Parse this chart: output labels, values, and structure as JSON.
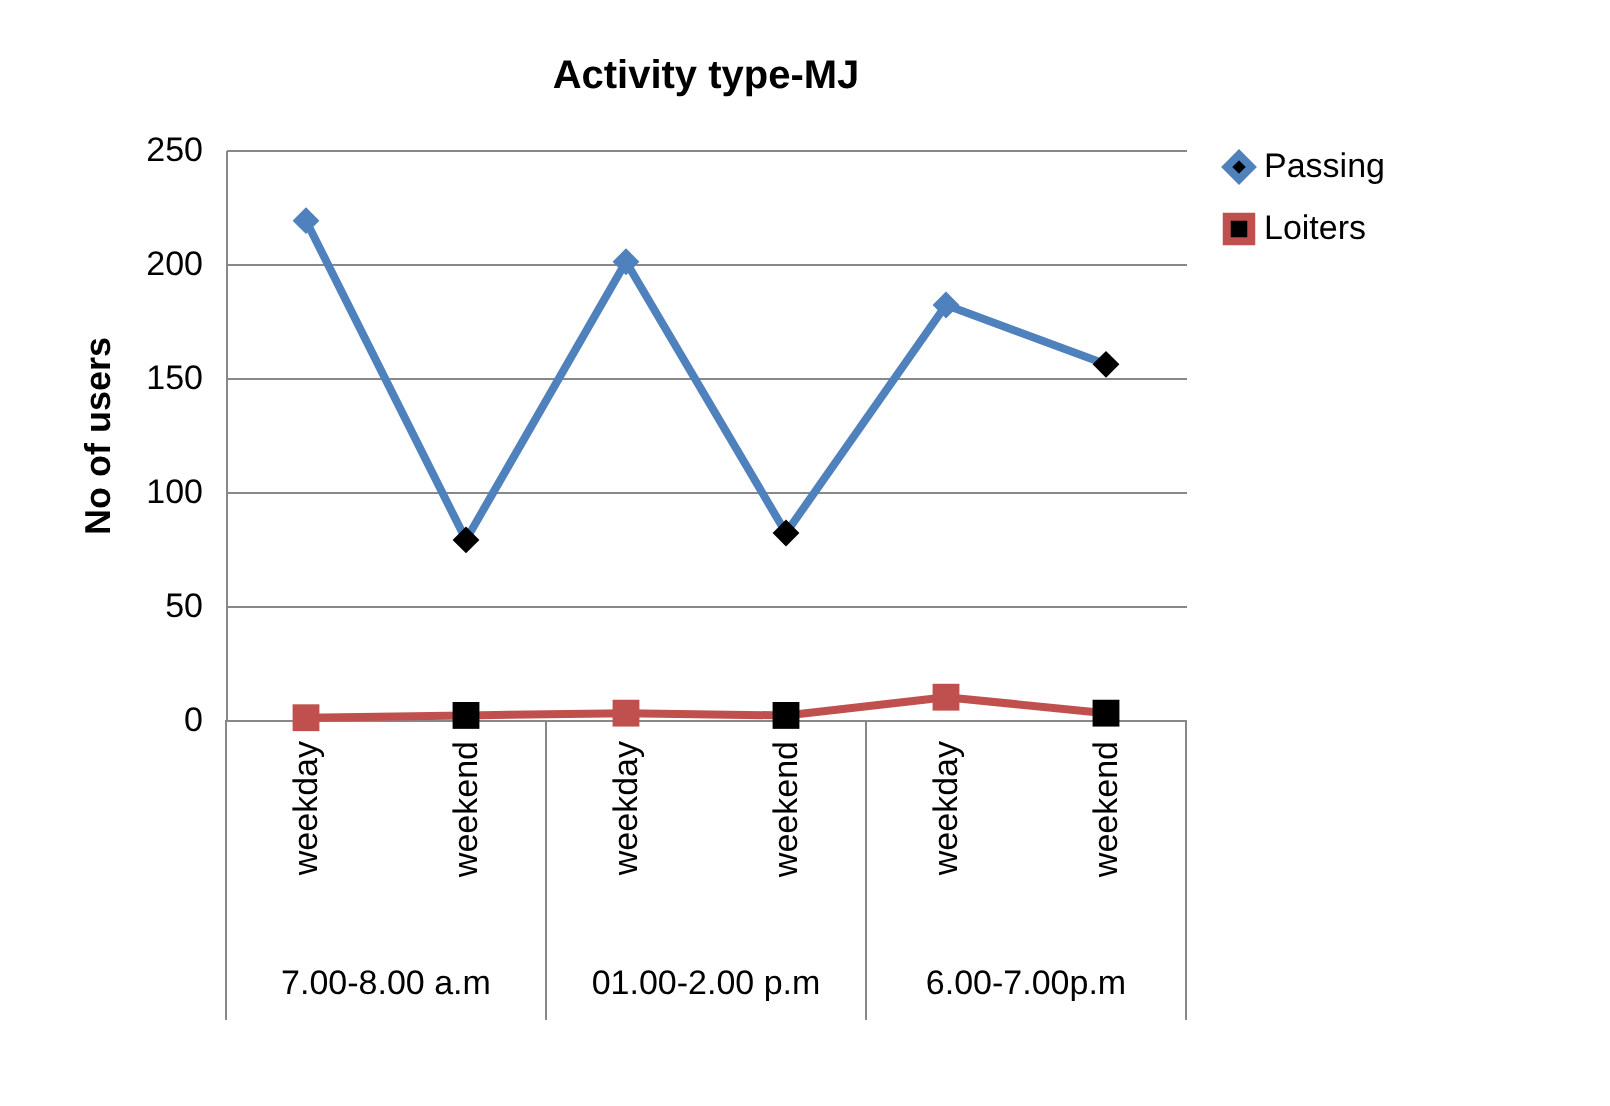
{
  "chart_data": {
    "type": "line",
    "title": "Activity type-MJ",
    "ylabel": "No of users",
    "categories": [
      "weekday",
      "weekend",
      "weekday",
      "weekend",
      "weekday",
      "weekend"
    ],
    "annotations": [
      "7.00-8.00 a.m",
      "01.00-2.00 p.m",
      "6.00-7.00p.m"
    ],
    "series": [
      {
        "name": "Passing",
        "color": "#4f81bd",
        "marker": "diamond",
        "values": [
          219,
          79,
          201,
          82,
          182,
          156
        ],
        "colors": [
          "#4f81bd",
          "#000000",
          "#4f81bd",
          "#000000",
          "#4f81bd",
          "#000000"
        ]
      },
      {
        "name": "Loiters",
        "color": "#c0504d",
        "marker": "square",
        "values": [
          1,
          2,
          3,
          2,
          10,
          3
        ],
        "colors": [
          "#c0504d",
          "#000000",
          "#c0504d",
          "#000000",
          "#c0504d",
          "#000000"
        ]
      }
    ],
    "ylim": [
      0,
      250
    ],
    "yticks": [
      0,
      50,
      100,
      150,
      200,
      250
    ],
    "grid": "y",
    "legend": "right"
  }
}
